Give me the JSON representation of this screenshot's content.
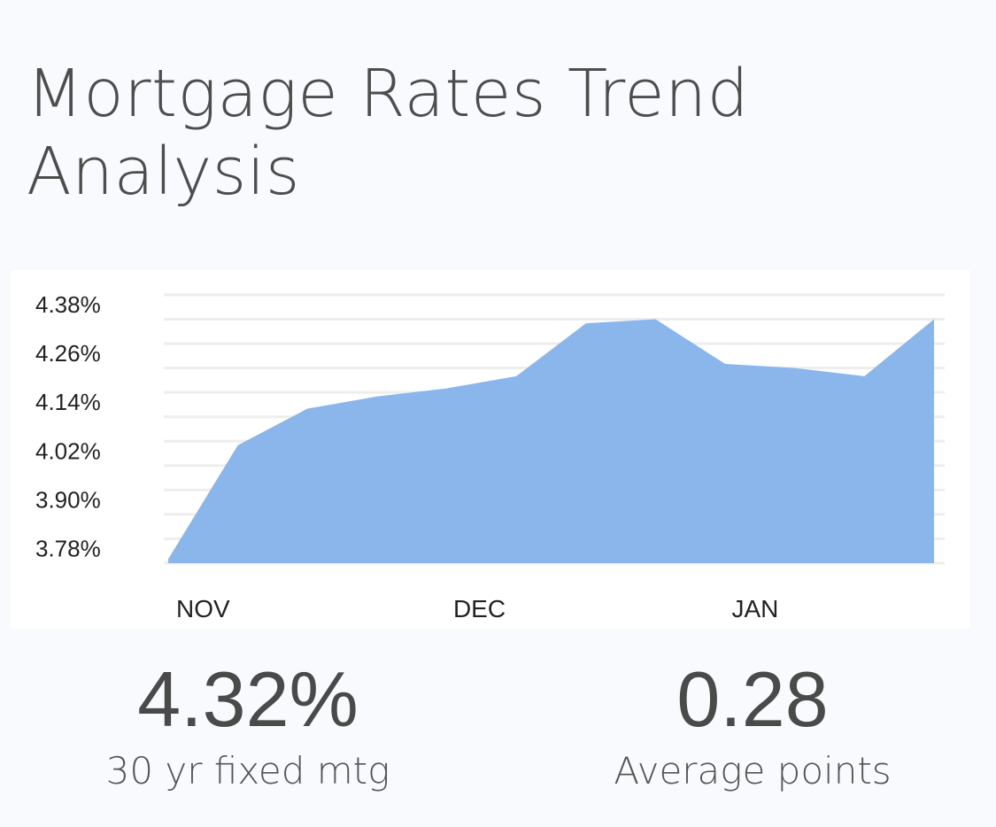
{
  "title": "Mortgage Rates Trend Analysis",
  "chart_data": {
    "type": "area",
    "title": "",
    "xlabel": "",
    "ylabel": "",
    "x_tick_labels": [
      "NOV",
      "DEC",
      "JAN"
    ],
    "y_tick_labels": [
      "4.38%",
      "4.26%",
      "4.14%",
      "4.02%",
      "3.90%",
      "3.78%"
    ],
    "ylim": [
      3.72,
      4.38
    ],
    "grid": true,
    "legend": "none",
    "color": "#8ab6ec",
    "values": [
      3.73,
      4.01,
      4.1,
      4.13,
      4.15,
      4.18,
      4.31,
      4.32,
      4.21,
      4.2,
      4.18,
      4.32
    ]
  },
  "stats": [
    {
      "value": "4.32%",
      "label": "30 yr fixed mtg"
    },
    {
      "value": "0.28",
      "label": "Average points"
    }
  ]
}
